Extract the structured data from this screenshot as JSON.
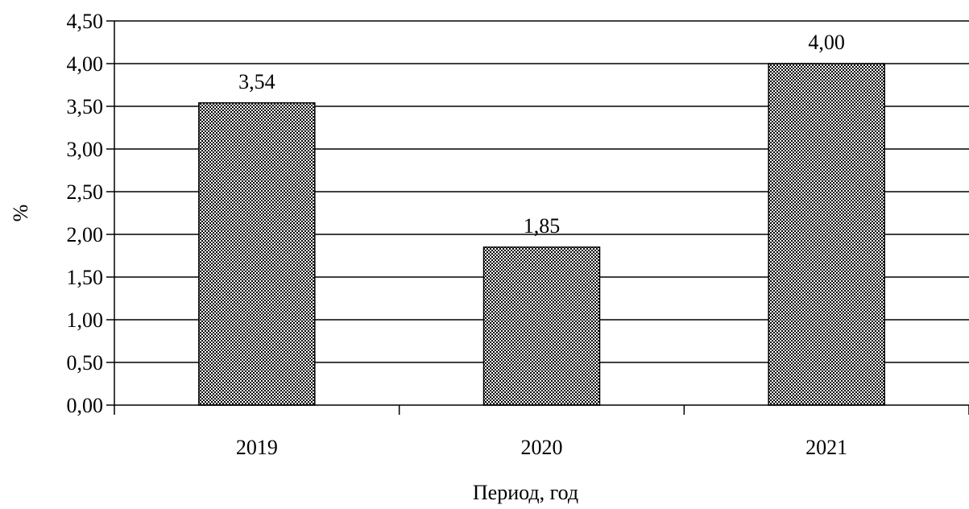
{
  "chart_data": {
    "type": "bar",
    "categories": [
      "2019",
      "2020",
      "2021"
    ],
    "values": [
      3.54,
      1.85,
      4.0
    ],
    "value_labels": [
      "3,54",
      "1,85",
      "4,00"
    ],
    "title": "",
    "xlabel": "Период, год",
    "ylabel": "%",
    "ylim": [
      0,
      4.5
    ],
    "yticks": [
      0,
      0.5,
      1,
      1.5,
      2,
      2.5,
      3,
      3.5,
      4,
      4.5
    ],
    "ytick_labels": [
      "0,00",
      "0,50",
      "1,00",
      "1,50",
      "2,00",
      "2,50",
      "3,00",
      "3,50",
      "4,00",
      "4,50"
    ],
    "grid": true,
    "legend": "none",
    "bar_fill": "checkered",
    "bar_color": "#000000",
    "background_color": "#ffffff"
  }
}
